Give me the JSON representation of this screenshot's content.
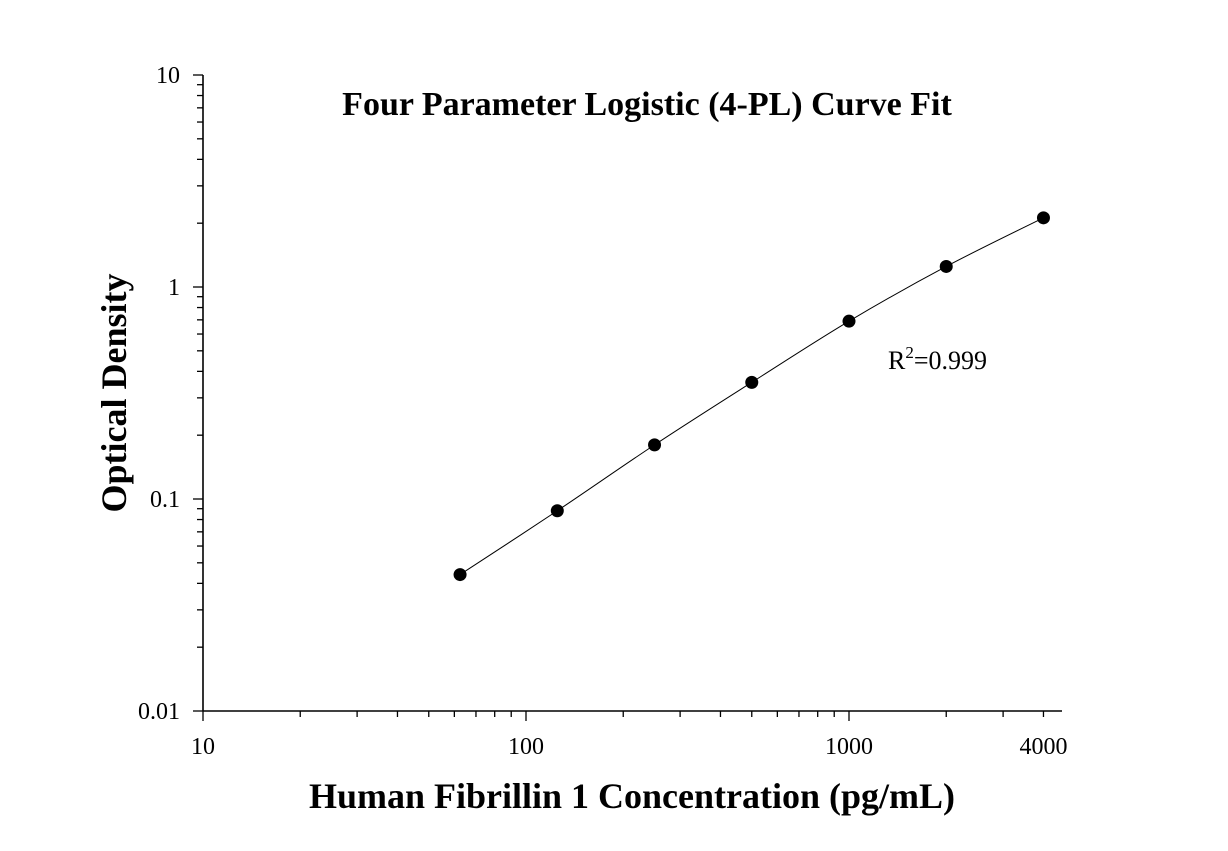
{
  "chart_data": {
    "type": "scatter",
    "title": "Four Parameter Logistic (4-PL) Curve Fit",
    "xlabel": "Human Fibrillin 1 Concentration (pg/mL)",
    "ylabel": "Optical Density",
    "x_scale": "log",
    "y_scale": "log",
    "xlim": [
      10,
      5000
    ],
    "ylim": [
      0.01,
      10
    ],
    "x_ticks": [
      10,
      100,
      1000,
      4000
    ],
    "x_tick_labels": [
      "10",
      "100",
      "1000",
      "4000"
    ],
    "y_ticks": [
      0.01,
      0.1,
      1,
      10
    ],
    "y_tick_labels": [
      "0.01",
      "0.1",
      "1",
      "10"
    ],
    "grid": false,
    "legend": "none",
    "points": {
      "x": [
        62.5,
        125,
        250,
        500,
        1000,
        2000,
        4000
      ],
      "y": [
        0.044,
        0.088,
        0.18,
        0.355,
        0.69,
        1.25,
        2.12
      ]
    },
    "fit_curve": "4-PL",
    "annotation": {
      "r_main": "R",
      "r_sup": "2",
      "r_value": "=0.999"
    },
    "colors": {
      "points": "#000000",
      "line": "#000000",
      "background": "#ffffff"
    }
  }
}
